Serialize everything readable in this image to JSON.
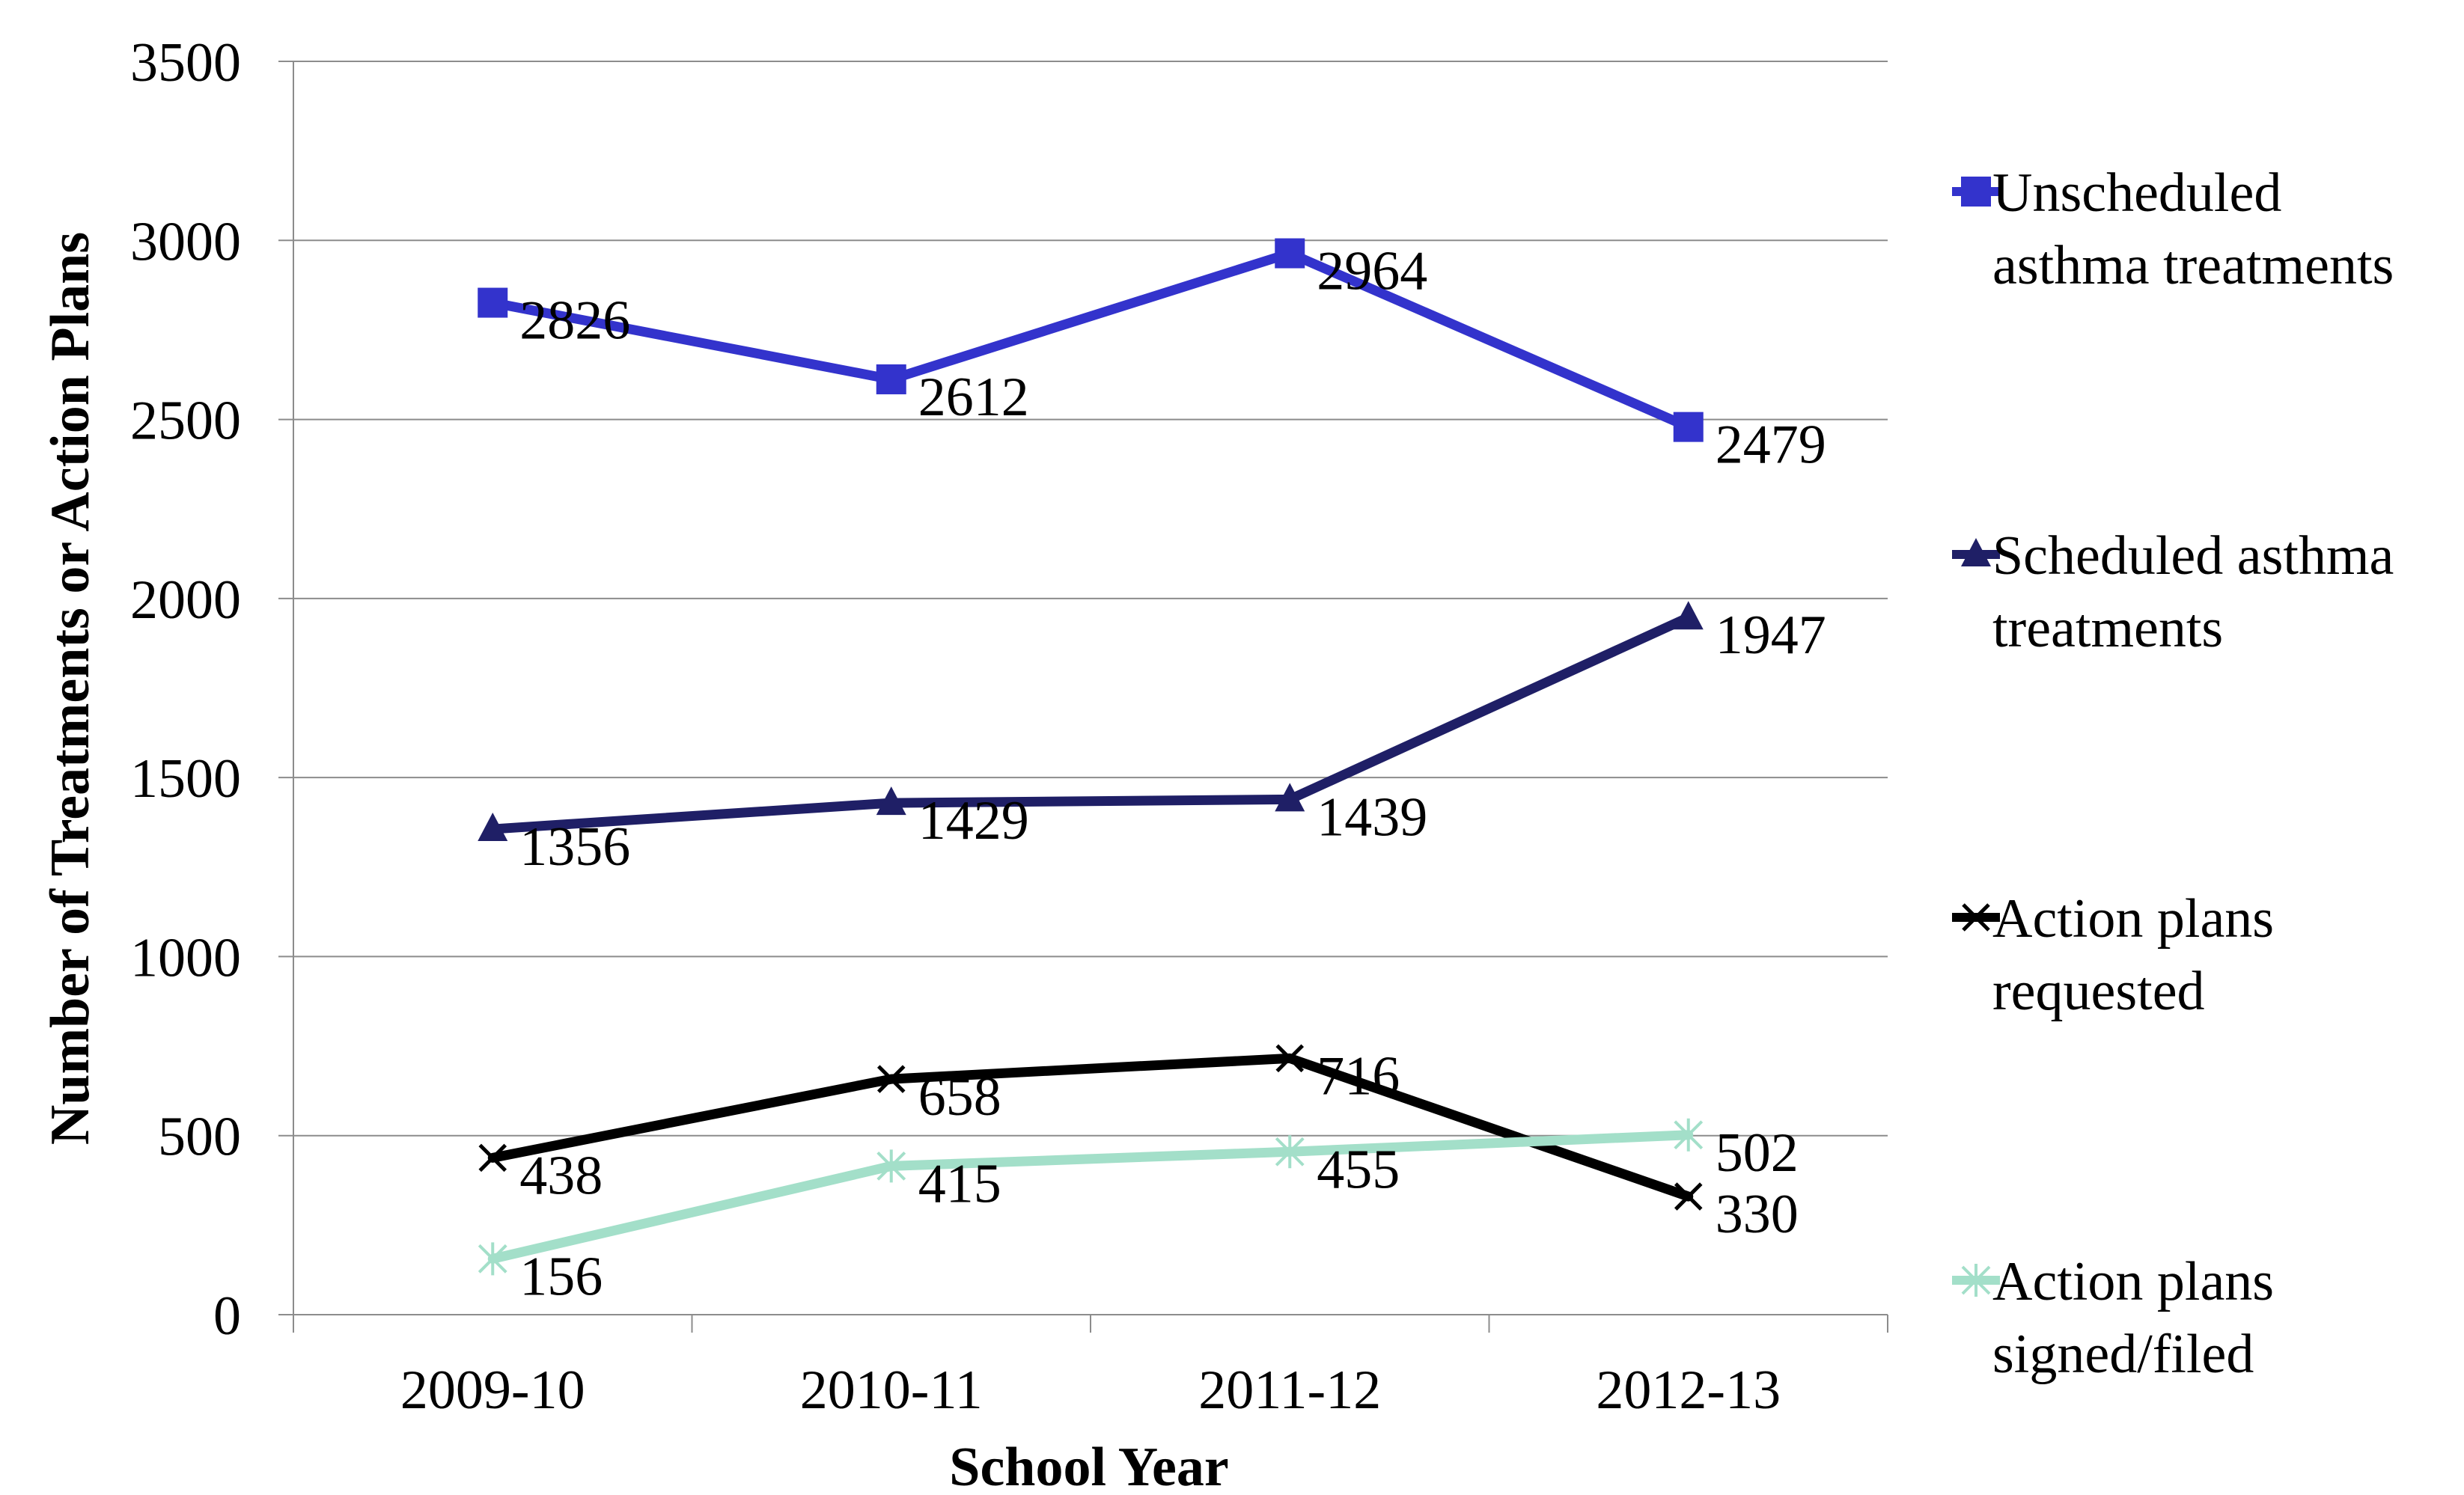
{
  "chart_data": {
    "type": "line",
    "xlabel": "School Year",
    "ylabel": "Number of Treatments or Action Plans",
    "categories": [
      "2009-10",
      "2010-11",
      "2011-12",
      "2012-13"
    ],
    "ylim": [
      0,
      3500
    ],
    "yticks": [
      0,
      500,
      1000,
      1500,
      2000,
      2500,
      3000,
      3500
    ],
    "grid": "horizontal",
    "legend_position": "right",
    "series": [
      {
        "name": "Unscheduled asthma treatments",
        "legend_lines": [
          "Unscheduled",
          "asthma treatments"
        ],
        "values": [
          2826,
          2612,
          2964,
          2479
        ],
        "labels": [
          "2826",
          "2612",
          "2964",
          "2479"
        ],
        "color": "#3333cc",
        "marker": "square"
      },
      {
        "name": "Scheduled asthma treatments",
        "legend_lines": [
          "Scheduled asthma",
          "treatments"
        ],
        "values": [
          1356,
          1429,
          1439,
          1947
        ],
        "labels": [
          "1356",
          "1429",
          "1439",
          "1947"
        ],
        "color": "#1f1f66",
        "marker": "triangle"
      },
      {
        "name": "Action plans requested",
        "legend_lines": [
          "Action plans",
          "requested"
        ],
        "values": [
          438,
          658,
          716,
          330
        ],
        "labels": [
          "438",
          "658",
          "716",
          "330"
        ],
        "color": "#000000",
        "marker": "x"
      },
      {
        "name": "Action plans signed/filed",
        "legend_lines": [
          "Action plans",
          "signed/filed"
        ],
        "values": [
          156,
          415,
          455,
          502
        ],
        "labels": [
          "156",
          "415",
          "455",
          "502"
        ],
        "color": "#a3dfc9",
        "marker": "asterisk"
      }
    ]
  }
}
